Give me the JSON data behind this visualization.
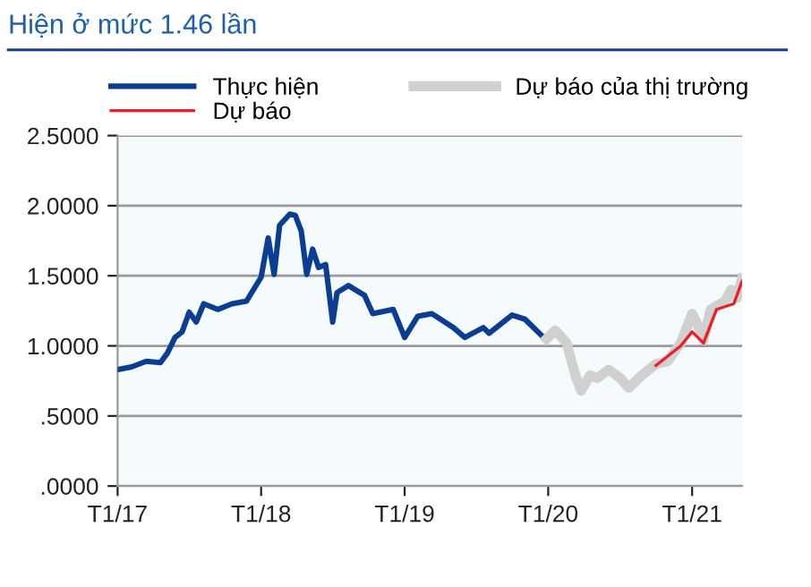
{
  "chart_data": {
    "type": "line",
    "title": "Hiện ở mức 1.46 lần",
    "x": [
      "2017-01-01",
      "2017-02-06",
      "2017-03-15",
      "2017-04-20",
      "2017-05-08",
      "2017-05-27",
      "2017-06-14",
      "2017-07-02",
      "2017-07-20",
      "2017-08-08",
      "2017-09-13",
      "2017-10-19",
      "2017-11-25",
      "2018-01-01",
      "2018-01-19",
      "2018-02-03",
      "2018-02-17",
      "2018-03-15",
      "2018-03-29",
      "2018-04-13",
      "2018-04-27",
      "2018-05-12",
      "2018-05-27",
      "2018-06-14",
      "2018-07-02",
      "2018-07-13",
      "2018-08-11",
      "2018-09-21",
      "2018-10-12",
      "2018-12-03",
      "2019-01-01",
      "2019-02-03",
      "2019-03-11",
      "2019-05-05",
      "2019-06-03",
      "2019-07-20",
      "2019-08-04",
      "2019-10-01",
      "2019-11-03",
      "2019-12-24"
    ],
    "series": [
      {
        "name": "Thực hiện",
        "color": "#0b3d91",
        "values": [
          0.83,
          0.85,
          0.89,
          0.88,
          0.95,
          1.06,
          1.1,
          1.24,
          1.17,
          1.3,
          1.26,
          1.3,
          1.32,
          1.49,
          1.77,
          1.51,
          1.86,
          1.94,
          1.93,
          1.82,
          1.51,
          1.69,
          1.56,
          1.58,
          1.17,
          1.38,
          1.43,
          1.36,
          1.23,
          1.26,
          1.06,
          1.21,
          1.23,
          1.13,
          1.06,
          1.13,
          1.09,
          1.22,
          1.19,
          1.05
        ]
      },
      {
        "name": "Dự báo của thị trường",
        "color": "#d0d0d0",
        "x": [
          "2019-12-28",
          "2020-01-19",
          "2020-02-17",
          "2020-03-10",
          "2020-03-25",
          "2020-04-16",
          "2020-05-05",
          "2020-06-03",
          "2020-07-02",
          "2020-07-24",
          "2020-08-26",
          "2020-10-01",
          "2020-10-30",
          "2020-12-03",
          "2021-01-01",
          "2021-01-15",
          "2021-01-30",
          "2021-02-17",
          "2021-03-26",
          "2021-04-10",
          "2021-04-24",
          "2021-05-08"
        ],
        "values": [
          1.05,
          1.11,
          1.02,
          0.79,
          0.68,
          0.79,
          0.77,
          0.83,
          0.77,
          0.7,
          0.79,
          0.87,
          0.89,
          1.02,
          1.23,
          1.15,
          1.04,
          1.26,
          1.32,
          1.4,
          1.34,
          1.48
        ]
      },
      {
        "name": "Dự báo",
        "color": "#e8202a",
        "x": [
          "2020-10-01",
          "2020-12-03",
          "2021-01-01",
          "2021-01-30",
          "2021-03-04",
          "2021-04-17",
          "2021-05-08"
        ],
        "values": [
          0.86,
          1.0,
          1.1,
          1.02,
          1.26,
          1.3,
          1.46
        ]
      }
    ],
    "xlim": [
      "2017-01-01",
      "2021-05-08"
    ],
    "xticks": [
      {
        "value": "2017-01-01",
        "label": "T1/17"
      },
      {
        "value": "2018-01-01",
        "label": "T1/18"
      },
      {
        "value": "2019-01-01",
        "label": "T1/19"
      },
      {
        "value": "2020-01-01",
        "label": "T1/20"
      },
      {
        "value": "2021-01-01",
        "label": "T1/21"
      }
    ],
    "ylim": [
      0,
      2.5
    ],
    "yticks": [
      {
        "value": 0,
        "label": ".0000"
      },
      {
        "value": 0.5,
        "label": ".5000"
      },
      {
        "value": 1.0,
        "label": "1.0000"
      },
      {
        "value": 1.5,
        "label": "1.5000"
      },
      {
        "value": 2.0,
        "label": "2.0000"
      },
      {
        "value": 2.5,
        "label": "2.5000"
      }
    ],
    "grid": "y",
    "legend": "top",
    "line_style": "solid",
    "marker": "none"
  }
}
